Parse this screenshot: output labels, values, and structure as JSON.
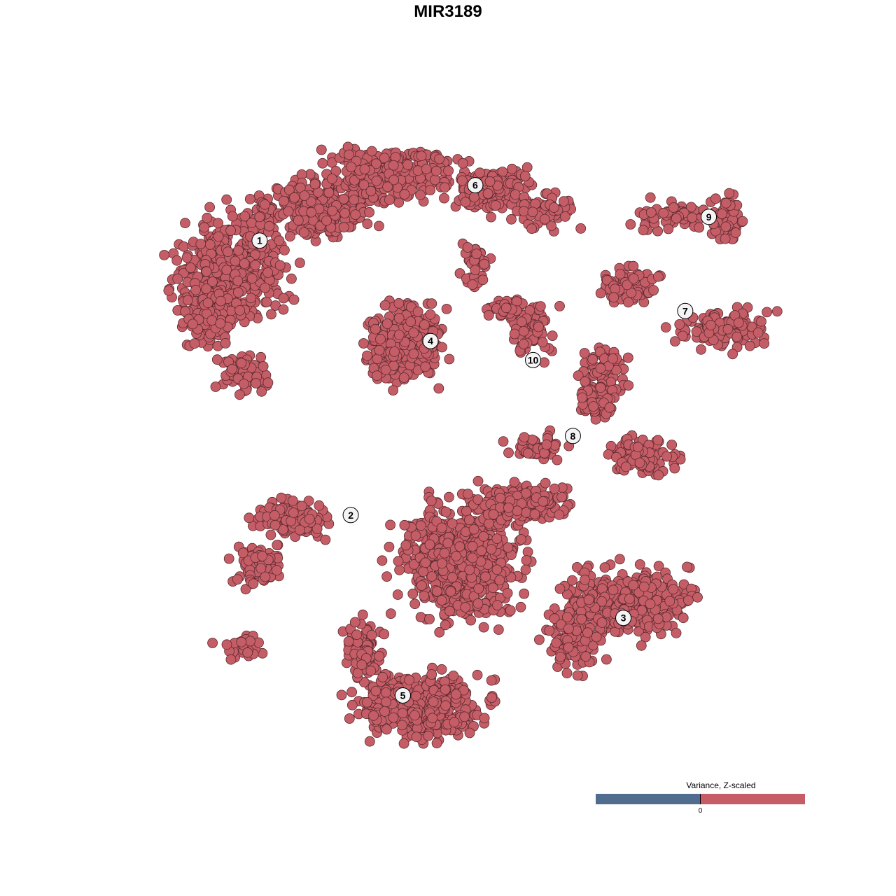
{
  "chart_data": {
    "type": "scatter",
    "title": "MIR3189",
    "xlabel": "",
    "ylabel": "",
    "axes_visible": false,
    "grid": false,
    "point_color": "#c55d67",
    "point_outline": "#5a2a2e",
    "clusters": [
      {
        "label": "1",
        "x": -25.3,
        "y": 26.0
      },
      {
        "label": "2",
        "x": -14.1,
        "y": -8.7
      },
      {
        "label": "3",
        "x": 19.4,
        "y": -21.7
      },
      {
        "label": "4",
        "x": -4.3,
        "y": 13.3
      },
      {
        "label": "5",
        "x": -7.7,
        "y": -31.5
      },
      {
        "label": "6",
        "x": 1.2,
        "y": 33.0
      },
      {
        "label": "7",
        "x": 27.0,
        "y": 17.1
      },
      {
        "label": "8",
        "x": 13.2,
        "y": 1.3
      },
      {
        "label": "9",
        "x": 29.9,
        "y": 29.0
      },
      {
        "label": "10",
        "x": 8.3,
        "y": 10.9
      }
    ],
    "legend": {
      "title": "Variance, Z-scaled",
      "placement": "bottom-right",
      "tick": "0",
      "low_color": "#506d8f",
      "high_color": "#c55d67"
    }
  }
}
